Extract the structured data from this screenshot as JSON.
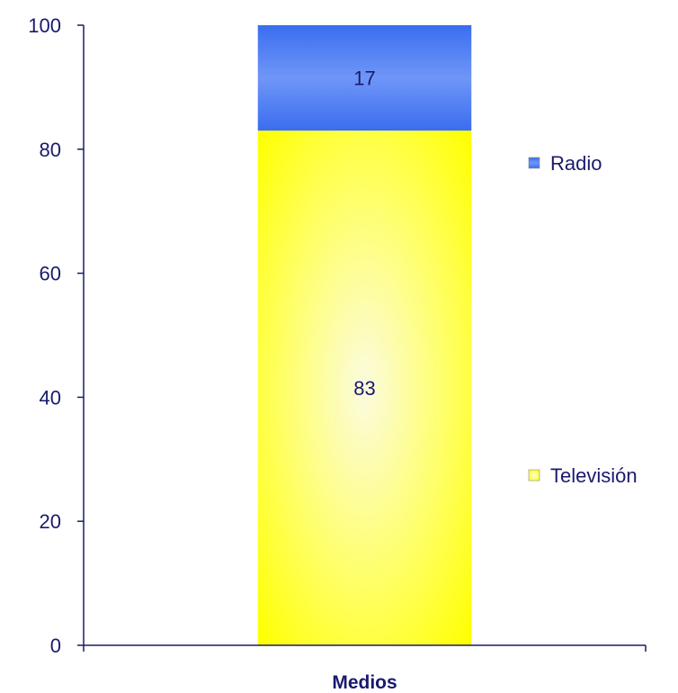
{
  "chart_data": {
    "type": "bar",
    "stacked": true,
    "categories": [
      "Medios"
    ],
    "series": [
      {
        "name": "Televisión",
        "values": [
          83
        ],
        "color": "#ffff00"
      },
      {
        "name": "Radio",
        "values": [
          17
        ],
        "color": "#3366ee"
      }
    ],
    "ylim": [
      0,
      100
    ],
    "yticks": [
      0,
      20,
      40,
      60,
      80,
      100
    ],
    "grid": false,
    "legend_position": "right",
    "axis_color": "#1a1a6e"
  }
}
